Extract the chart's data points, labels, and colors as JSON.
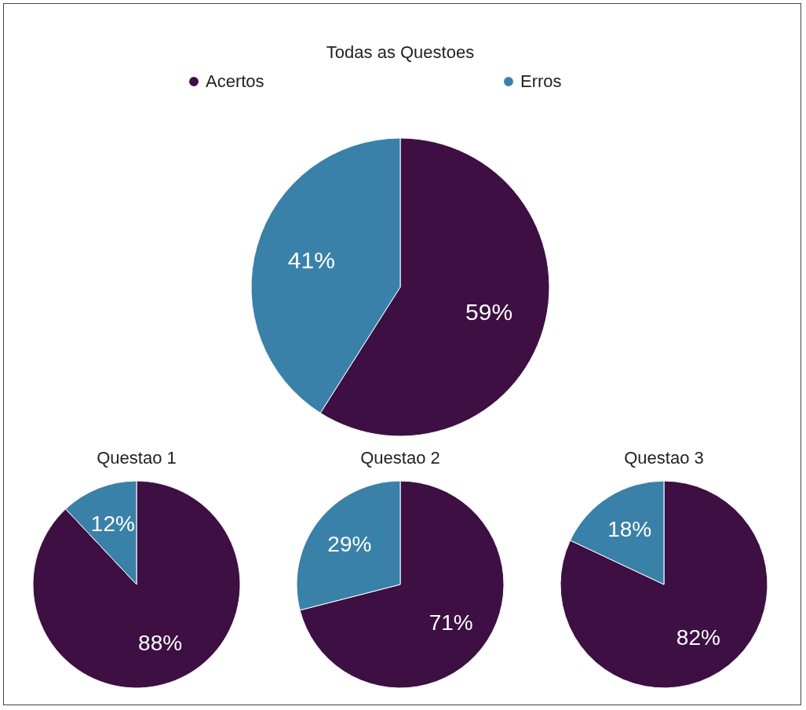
{
  "chart_data": [
    {
      "type": "pie",
      "title": "Todas as Questoes",
      "categories": [
        "Acertos",
        "Erros"
      ],
      "values": [
        59,
        41
      ],
      "colors": [
        "#3d0f43",
        "#3a81a9"
      ],
      "value_labels": [
        "59%",
        "41%"
      ],
      "legend": "top"
    },
    {
      "type": "pie",
      "title": "Questao 1",
      "categories": [
        null,
        null
      ],
      "values": [
        88,
        12
      ],
      "colors": [
        "#3d0f43",
        "#3a81a9"
      ],
      "value_labels": [
        "88%",
        "12%"
      ]
    },
    {
      "type": "pie",
      "title": "Questao 2",
      "categories": [
        null,
        null
      ],
      "values": [
        71,
        29
      ],
      "colors": [
        "#3d0f43",
        "#3a81a9"
      ],
      "value_labels": [
        "71%",
        "29%"
      ]
    },
    {
      "type": "pie",
      "title": "Questao 3",
      "categories": [
        null,
        null
      ],
      "values": [
        82,
        18
      ],
      "colors": [
        "#3d0f43",
        "#3a81a9"
      ],
      "value_labels": [
        "82%",
        "18%"
      ]
    }
  ]
}
